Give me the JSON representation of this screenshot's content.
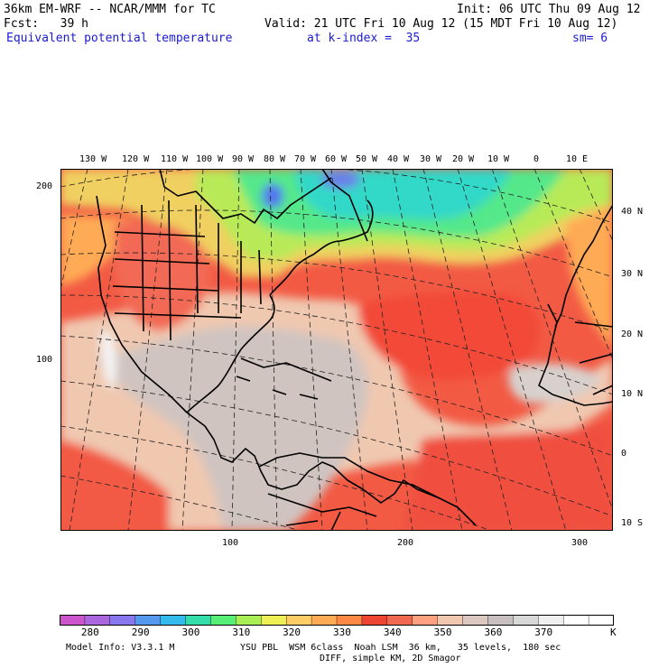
{
  "header": {
    "model": "36km EM-WRF -- NCAR/MMM for TC",
    "init": "Init: 06 UTC Thu 09 Aug 12",
    "fcst": "Fcst:   39 h",
    "valid": "Valid: 21 UTC Fri 10 Aug 12 (15 MDT Fri 10 Aug 12)",
    "field": "Equivalent potential temperature",
    "level": "at k-index =  35",
    "smooth": "sm= 6"
  },
  "axes": {
    "lon_labels": [
      "130 W",
      "120 W",
      "110 W",
      "100 W",
      "90 W",
      "80 W",
      "70 W",
      "60 W",
      "50 W",
      "40 W",
      "30 W",
      "20 W",
      "10 W",
      "0",
      "10 E"
    ],
    "lat_labels": [
      "40 N",
      "30 N",
      "20 N",
      "10 N",
      "0",
      "10 S"
    ],
    "grid_y_labels": [
      "200",
      "100"
    ],
    "grid_x_labels": [
      "100",
      "200",
      "300"
    ]
  },
  "colorbar": {
    "colors": [
      "#cc55cc",
      "#aa66dd",
      "#8877ee",
      "#5599ee",
      "#33bbee",
      "#33ddaa",
      "#55ee77",
      "#aaee55",
      "#eeee55",
      "#ffcc66",
      "#ffaa55",
      "#ff8844",
      "#ee4433",
      "#f06850",
      "#ffa080",
      "#f0c8b0",
      "#dcc8c0",
      "#c8c0c0",
      "#d8d8d8",
      "#f0f0f0",
      "#ffffff",
      "#ffffff"
    ],
    "tick_labels": [
      "280",
      "290",
      "300",
      "310",
      "320",
      "330",
      "340",
      "350",
      "360",
      "370"
    ],
    "unit": "K"
  },
  "footer": {
    "line1_left": "Model Info: V3.3.1 M",
    "line1_right": "YSU PBL  WSM 6class  Noah LSM  36 km,   35 levels,  180 sec",
    "line2": "DIFF, simple KM, 2D Smagor"
  }
}
